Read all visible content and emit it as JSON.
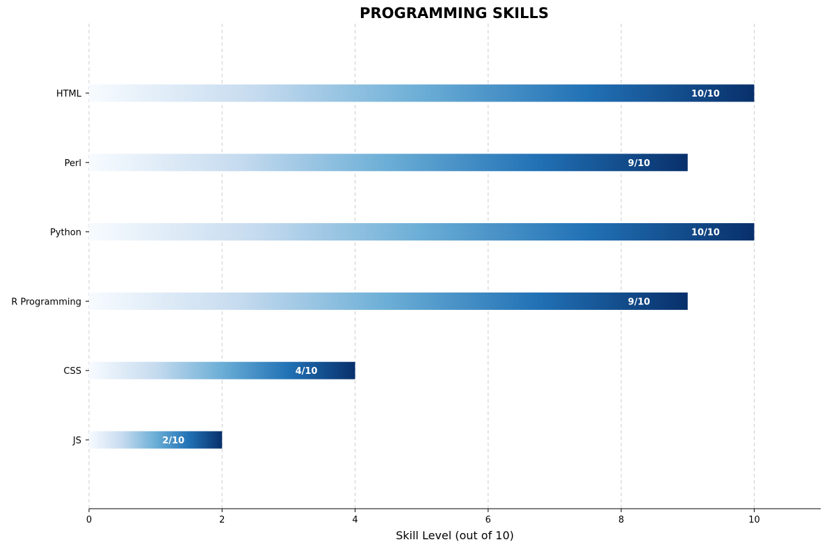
{
  "chart_data": {
    "type": "bar",
    "orientation": "horizontal",
    "title": "PROGRAMMING SKILLS",
    "xlabel": "Skill Level (out of 10)",
    "ylabel": "",
    "categories": [
      "HTML",
      "Perl",
      "Python",
      "R Programming",
      "CSS",
      "JS"
    ],
    "values": [
      10,
      9,
      10,
      9,
      4,
      2
    ],
    "value_labels": [
      "10/10",
      "9/10",
      "10/10",
      "9/10",
      "4/10",
      "2/10"
    ],
    "xlim": [
      0,
      11
    ],
    "xticks": [
      0,
      2,
      4,
      6,
      8,
      10
    ],
    "xtick_labels": [
      "0",
      "2",
      "4",
      "6",
      "8",
      "10"
    ],
    "grid": "x-dashed",
    "colormap": [
      "#f7fbff",
      "#c6dbef",
      "#6baed6",
      "#2171b5",
      "#08306b"
    ]
  }
}
